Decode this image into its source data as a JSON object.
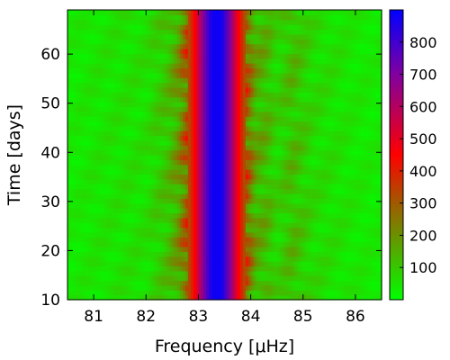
{
  "chart_data": {
    "type": "heatmap",
    "title": "",
    "xlabel": "Frequency [μHz]",
    "ylabel": "Time [days]",
    "xlim": [
      80.5,
      86.5
    ],
    "ylim": [
      10,
      69
    ],
    "x_ticks": [
      {
        "value": 81,
        "label": "81"
      },
      {
        "value": 82,
        "label": "82"
      },
      {
        "value": 83,
        "label": "83"
      },
      {
        "value": 84,
        "label": "84"
      },
      {
        "value": 85,
        "label": "85"
      },
      {
        "value": 86,
        "label": "86"
      }
    ],
    "y_ticks": [
      {
        "value": 10,
        "label": "10"
      },
      {
        "value": 20,
        "label": "20"
      },
      {
        "value": 30,
        "label": "30"
      },
      {
        "value": 40,
        "label": "40"
      },
      {
        "value": 50,
        "label": "50"
      },
      {
        "value": 60,
        "label": "60"
      }
    ],
    "colorbar": {
      "range": [
        0,
        900
      ],
      "ticks": [
        {
          "value": 100,
          "label": "100"
        },
        {
          "value": 200,
          "label": "200"
        },
        {
          "value": 300,
          "label": "300"
        },
        {
          "value": 400,
          "label": "400"
        },
        {
          "value": 500,
          "label": "500"
        },
        {
          "value": 600,
          "label": "600"
        },
        {
          "value": 700,
          "label": "700"
        },
        {
          "value": 800,
          "label": "800"
        }
      ],
      "colormap": [
        {
          "value": 0,
          "color": "#00ff00"
        },
        {
          "value": 300,
          "color": "#a05a00"
        },
        {
          "value": 450,
          "color": "#ff0000"
        },
        {
          "value": 700,
          "color": "#8000a0"
        },
        {
          "value": 900,
          "color": "#0000ff"
        }
      ]
    },
    "peak": {
      "center_frequency": 83.35,
      "max_power": 880
    },
    "power_profile": [
      {
        "frequency": 80.5,
        "power": 40
      },
      {
        "frequency": 81.0,
        "power": 50
      },
      {
        "frequency": 81.5,
        "power": 55
      },
      {
        "frequency": 82.0,
        "power": 60
      },
      {
        "frequency": 82.4,
        "power": 110
      },
      {
        "frequency": 82.6,
        "power": 170
      },
      {
        "frequency": 82.8,
        "power": 300
      },
      {
        "frequency": 82.95,
        "power": 480
      },
      {
        "frequency": 83.1,
        "power": 700
      },
      {
        "frequency": 83.25,
        "power": 870
      },
      {
        "frequency": 83.35,
        "power": 880
      },
      {
        "frequency": 83.45,
        "power": 870
      },
      {
        "frequency": 83.6,
        "power": 700
      },
      {
        "frequency": 83.75,
        "power": 480
      },
      {
        "frequency": 83.9,
        "power": 300
      },
      {
        "frequency": 84.1,
        "power": 150
      },
      {
        "frequency": 84.3,
        "power": 130
      },
      {
        "frequency": 84.5,
        "power": 80
      },
      {
        "frequency": 84.8,
        "power": 120
      },
      {
        "frequency": 85.2,
        "power": 70
      },
      {
        "frequency": 86.0,
        "power": 45
      },
      {
        "frequency": 86.5,
        "power": 40
      }
    ]
  }
}
